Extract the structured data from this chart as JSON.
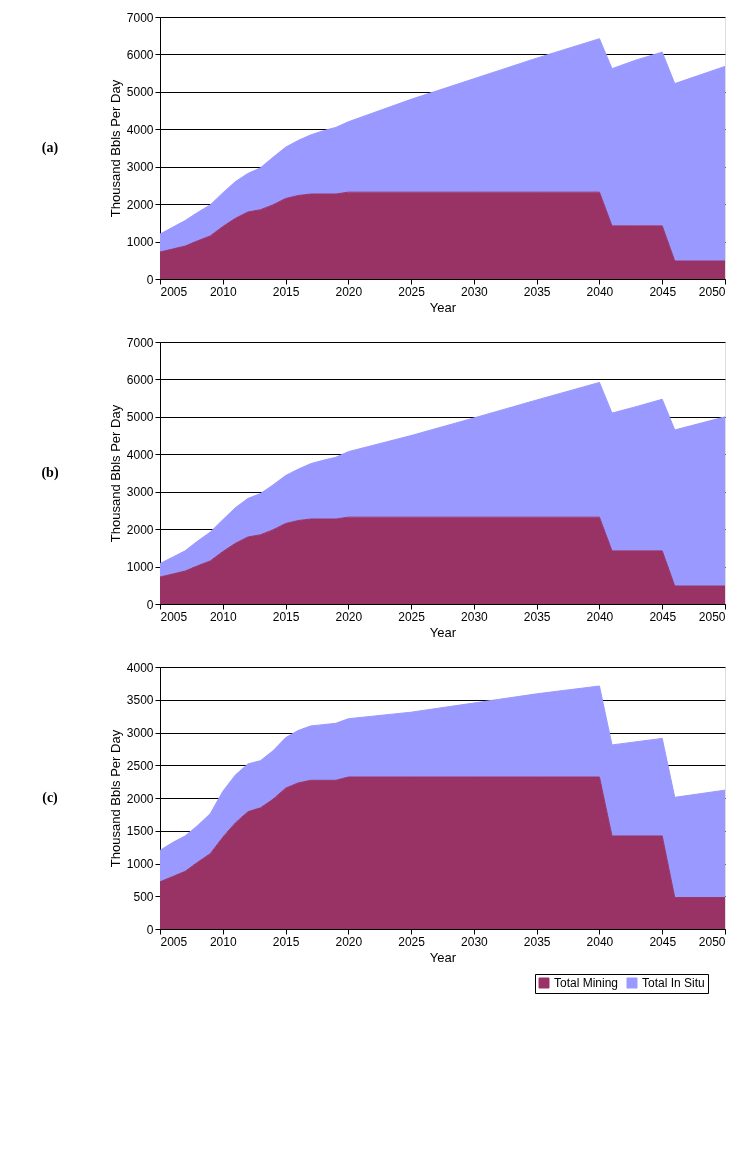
{
  "chart_data": [
    {
      "type": "area",
      "stacked": true,
      "xlabel": "Year",
      "ylabel": "Thousand Bbls Per Day",
      "annotations": [
        "(a)"
      ],
      "x": [
        2005,
        2006,
        2007,
        2008,
        2009,
        2010,
        2011,
        2012,
        2013,
        2014,
        2015,
        2016,
        2017,
        2018,
        2019,
        2020,
        2025,
        2030,
        2035,
        2040,
        2041,
        2043,
        2045,
        2046,
        2050
      ],
      "xlim": [
        2005,
        2050
      ],
      "xticks": [
        2005,
        2010,
        2015,
        2020,
        2025,
        2030,
        2035,
        2040,
        2045,
        2050
      ],
      "ylim": [
        0,
        7000
      ],
      "yticks": [
        0,
        1000,
        2000,
        3000,
        4000,
        5000,
        6000,
        7000
      ],
      "grid": "y",
      "legend": false,
      "series": [
        {
          "color": "#993366",
          "values": [
            720,
            800,
            880,
            1020,
            1150,
            1400,
            1620,
            1790,
            1850,
            1980,
            2150,
            2230,
            2270,
            2270,
            2270,
            2320,
            2320,
            2320,
            2320,
            2320,
            1420,
            1420,
            1420,
            480,
            480
          ]
        },
        {
          "color": "#9999ff",
          "values": [
            480,
            580,
            680,
            760,
            830,
            900,
            980,
            1030,
            1120,
            1270,
            1370,
            1470,
            1580,
            1690,
            1780,
            1880,
            2480,
            3030,
            3580,
            4100,
            4200,
            4440,
            4640,
            4740,
            5200
          ]
        }
      ]
    },
    {
      "type": "area",
      "stacked": true,
      "xlabel": "Year",
      "ylabel": "Thousand Bbls Per Day",
      "annotations": [
        "(b)"
      ],
      "x": [
        2005,
        2006,
        2007,
        2008,
        2009,
        2010,
        2011,
        2012,
        2013,
        2014,
        2015,
        2016,
        2017,
        2018,
        2019,
        2020,
        2025,
        2030,
        2035,
        2040,
        2041,
        2043,
        2045,
        2046,
        2050
      ],
      "xlim": [
        2005,
        2050
      ],
      "xticks": [
        2005,
        2010,
        2015,
        2020,
        2025,
        2030,
        2035,
        2040,
        2045,
        2050
      ],
      "ylim": [
        0,
        7000
      ],
      "yticks": [
        0,
        1000,
        2000,
        3000,
        4000,
        5000,
        6000,
        7000
      ],
      "grid": "y",
      "legend": false,
      "series": [
        {
          "color": "#993366",
          "values": [
            720,
            800,
            880,
            1020,
            1150,
            1400,
            1620,
            1790,
            1850,
            1980,
            2150,
            2230,
            2270,
            2270,
            2270,
            2320,
            2320,
            2320,
            2320,
            2320,
            1420,
            1420,
            1420,
            480,
            480
          ]
        },
        {
          "color": "#9999ff",
          "values": [
            360,
            450,
            540,
            660,
            770,
            850,
            950,
            1030,
            1100,
            1200,
            1280,
            1370,
            1480,
            1570,
            1650,
            1750,
            2180,
            2650,
            3130,
            3600,
            3680,
            3860,
            4050,
            4170,
            4520
          ]
        }
      ]
    },
    {
      "type": "area",
      "stacked": true,
      "xlabel": "Year",
      "ylabel": "Thousand Bbls Per Day",
      "annotations": [
        "(c)"
      ],
      "x": [
        2005,
        2006,
        2007,
        2008,
        2009,
        2010,
        2011,
        2012,
        2013,
        2014,
        2015,
        2016,
        2017,
        2018,
        2019,
        2020,
        2025,
        2030,
        2035,
        2040,
        2041,
        2043,
        2045,
        2046,
        2050
      ],
      "xlim": [
        2005,
        2050
      ],
      "xticks": [
        2005,
        2010,
        2015,
        2020,
        2025,
        2030,
        2035,
        2040,
        2045,
        2050
      ],
      "ylim": [
        0,
        4000
      ],
      "yticks": [
        0,
        500,
        1000,
        1500,
        2000,
        2500,
        3000,
        3500,
        4000
      ],
      "grid": "y",
      "legend": "bottom right",
      "series": [
        {
          "name": "Total Mining",
          "color": "#993366",
          "values": [
            720,
            800,
            880,
            1020,
            1150,
            1400,
            1620,
            1790,
            1850,
            1980,
            2150,
            2230,
            2270,
            2270,
            2270,
            2320,
            2320,
            2320,
            2320,
            2320,
            1420,
            1420,
            1420,
            480,
            480
          ]
        },
        {
          "name": "Total In Situ",
          "color": "#9999ff",
          "values": [
            480,
            520,
            540,
            560,
            610,
            700,
            730,
            730,
            720,
            740,
            770,
            800,
            830,
            850,
            870,
            890,
            990,
            1130,
            1270,
            1390,
            1390,
            1440,
            1490,
            1530,
            1640
          ]
        }
      ]
    }
  ]
}
